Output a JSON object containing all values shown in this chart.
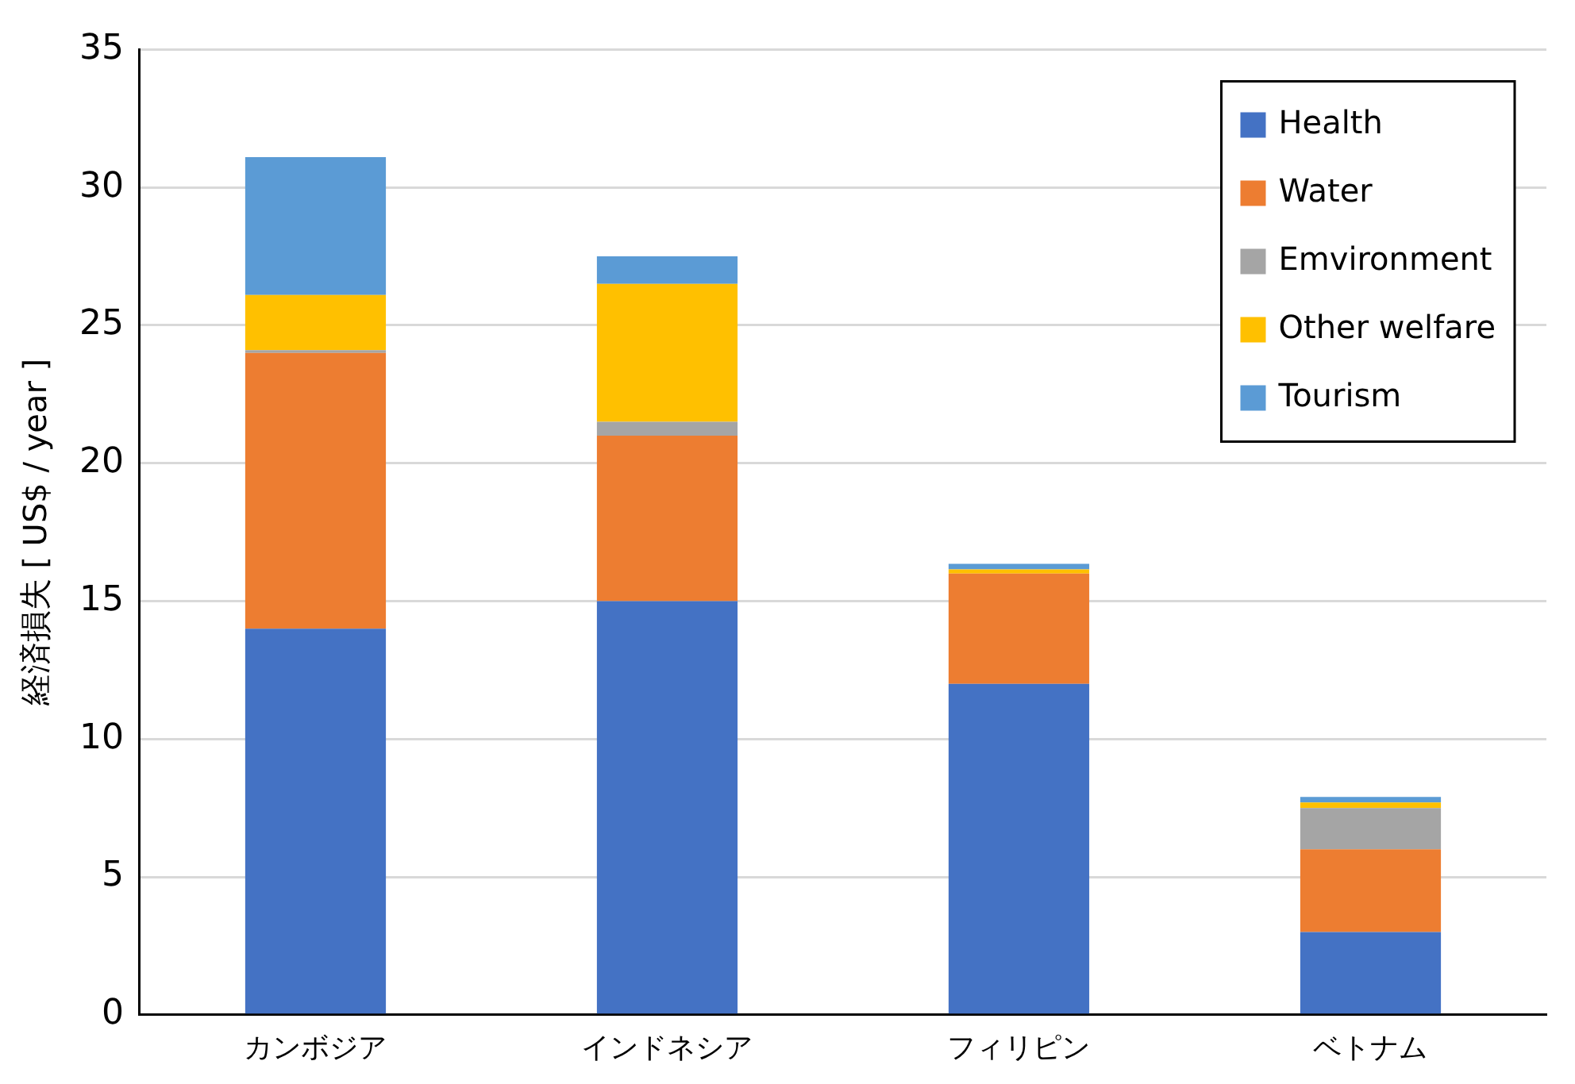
{
  "chart_data": {
    "type": "bar",
    "stacked": true,
    "ylabel": "経済損失 [ US$ / year ]",
    "categories": [
      "カンボジア",
      "インドネシア",
      "フィリピン",
      "ベトナム"
    ],
    "series": [
      {
        "name": "Health",
        "color": "#4472c4",
        "values": [
          14,
          15,
          12,
          3
        ]
      },
      {
        "name": "Water",
        "color": "#ed7d31",
        "values": [
          10,
          6,
          4,
          3
        ]
      },
      {
        "name": "Emvironment",
        "color": "#a5a5a5",
        "values": [
          0.1,
          0.5,
          0,
          1.5
        ]
      },
      {
        "name": "Other welfare",
        "color": "#ffc000",
        "values": [
          2,
          5,
          0.15,
          0.2
        ]
      },
      {
        "name": "Tourism",
        "color": "#5b9bd5",
        "values": [
          5,
          1,
          0.2,
          0.2
        ]
      }
    ],
    "ylim": [
      0,
      35
    ],
    "yticks": [
      0,
      5,
      10,
      15,
      20,
      25,
      30,
      35
    ],
    "grid": "y",
    "legend": "top right"
  }
}
